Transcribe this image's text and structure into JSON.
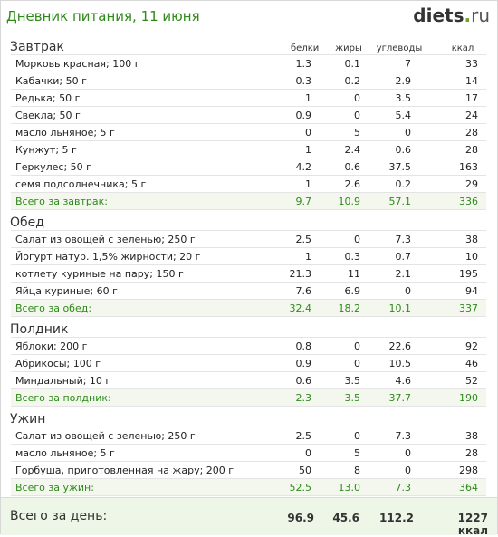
{
  "header": {
    "title": "Дневник питания, 11 июня",
    "logo_main": "diets",
    "logo_dot": ".",
    "logo_tld": "ru"
  },
  "columns": {
    "protein": "белки",
    "fat": "жиры",
    "carbs": "углеводы",
    "kcal": "ккал"
  },
  "sections": [
    {
      "title": "Завтрак",
      "rows": [
        {
          "name": "Морковь красная; 100 г",
          "protein": "1.3",
          "fat": "0.1",
          "carbs": "7",
          "kcal": "33"
        },
        {
          "name": "Кабачки; 50 г",
          "protein": "0.3",
          "fat": "0.2",
          "carbs": "2.9",
          "kcal": "14"
        },
        {
          "name": "Редька; 50 г",
          "protein": "1",
          "fat": "0",
          "carbs": "3.5",
          "kcal": "17"
        },
        {
          "name": "Свекла; 50 г",
          "protein": "0.9",
          "fat": "0",
          "carbs": "5.4",
          "kcal": "24"
        },
        {
          "name": "масло льняное; 5 г",
          "protein": "0",
          "fat": "5",
          "carbs": "0",
          "kcal": "28"
        },
        {
          "name": "Кунжут; 5 г",
          "protein": "1",
          "fat": "2.4",
          "carbs": "0.6",
          "kcal": "28"
        },
        {
          "name": "Геркулес; 50 г",
          "protein": "4.2",
          "fat": "0.6",
          "carbs": "37.5",
          "kcal": "163"
        },
        {
          "name": "семя подсолнечника; 5 г",
          "protein": "1",
          "fat": "2.6",
          "carbs": "0.2",
          "kcal": "29"
        }
      ],
      "total": {
        "name": "Всего за завтрак:",
        "protein": "9.7",
        "fat": "10.9",
        "carbs": "57.1",
        "kcal": "336"
      }
    },
    {
      "title": "Обед",
      "rows": [
        {
          "name": "Салат из овощей с зеленью; 250 г",
          "protein": "2.5",
          "fat": "0",
          "carbs": "7.3",
          "kcal": "38"
        },
        {
          "name": "Йогурт натур. 1,5% жирности; 20 г",
          "protein": "1",
          "fat": "0.3",
          "carbs": "0.7",
          "kcal": "10"
        },
        {
          "name": "котлету куриные на пару; 150 г",
          "protein": "21.3",
          "fat": "11",
          "carbs": "2.1",
          "kcal": "195"
        },
        {
          "name": "Яйца куриные; 60 г",
          "protein": "7.6",
          "fat": "6.9",
          "carbs": "0",
          "kcal": "94"
        }
      ],
      "total": {
        "name": "Всего за обед:",
        "protein": "32.4",
        "fat": "18.2",
        "carbs": "10.1",
        "kcal": "337"
      }
    },
    {
      "title": "Полдник",
      "rows": [
        {
          "name": "Яблоки; 200 г",
          "protein": "0.8",
          "fat": "0",
          "carbs": "22.6",
          "kcal": "92"
        },
        {
          "name": "Абрикосы; 100 г",
          "protein": "0.9",
          "fat": "0",
          "carbs": "10.5",
          "kcal": "46"
        },
        {
          "name": "Миндальный; 10 г",
          "protein": "0.6",
          "fat": "3.5",
          "carbs": "4.6",
          "kcal": "52"
        }
      ],
      "total": {
        "name": "Всего за полдник:",
        "protein": "2.3",
        "fat": "3.5",
        "carbs": "37.7",
        "kcal": "190"
      }
    },
    {
      "title": "Ужин",
      "rows": [
        {
          "name": "Салат из овощей с зеленью; 250 г",
          "protein": "2.5",
          "fat": "0",
          "carbs": "7.3",
          "kcal": "38"
        },
        {
          "name": "масло льняное; 5 г",
          "protein": "0",
          "fat": "5",
          "carbs": "0",
          "kcal": "28"
        },
        {
          "name": "Горбуша, приготовленная на жару; 200 г",
          "protein": "50",
          "fat": "8",
          "carbs": "0",
          "kcal": "298"
        }
      ],
      "total": {
        "name": "Всего за ужин:",
        "protein": "52.5",
        "fat": "13.0",
        "carbs": "7.3",
        "kcal": "364"
      }
    }
  ],
  "day_total": {
    "label": "Всего за день:",
    "protein": "96.9",
    "fat": "45.6",
    "carbs": "112.2",
    "kcal": "1227 ккал"
  }
}
